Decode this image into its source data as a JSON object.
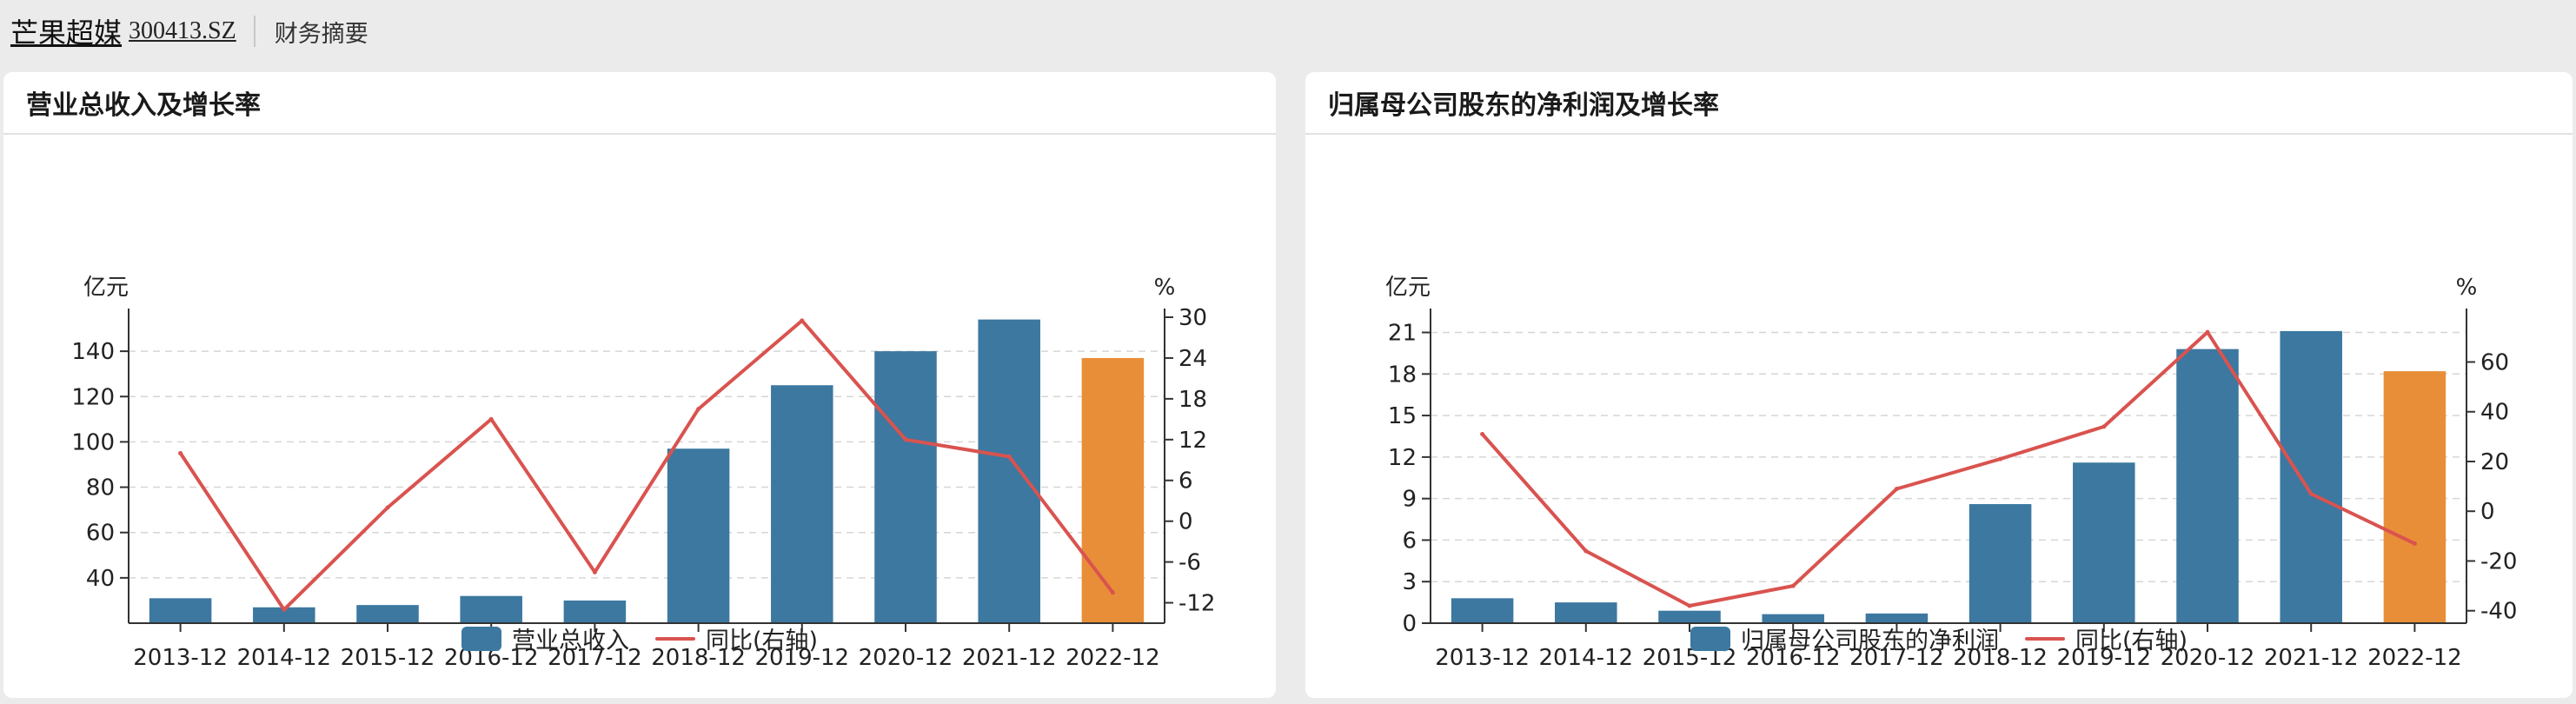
{
  "header": {
    "company": "芒果超媒",
    "code": "300413.SZ",
    "section": "财务摘要"
  },
  "colors": {
    "bar": "#3c78a0",
    "bar_highlight": "#e98e38",
    "line": "#d9534f",
    "grid": "#d6d6d6",
    "axis": "#333333"
  },
  "chart_data": [
    {
      "type": "bar",
      "title": "营业总收入及增长率",
      "ylabel": "亿元",
      "y2label": "%",
      "categories": [
        "2013-12",
        "2014-12",
        "2015-12",
        "2016-12",
        "2017-12",
        "2018-12",
        "2019-12",
        "2020-12",
        "2021-12",
        "2022-12"
      ],
      "ylim": [
        20,
        155
      ],
      "yticks": [
        40,
        60,
        80,
        100,
        120,
        140
      ],
      "y2lim": [
        -15,
        30
      ],
      "y2ticks": [
        -12,
        -6,
        0,
        6,
        12,
        18,
        24,
        30
      ],
      "highlight_index": 9,
      "grid": true,
      "legend_position": "bottom",
      "series": [
        {
          "name": "营业总收入",
          "kind": "bar",
          "axis": "left",
          "values": [
            31,
            27,
            28,
            32,
            30,
            97,
            125,
            140,
            154,
            137
          ]
        },
        {
          "name": "同比(右轴)",
          "kind": "line",
          "axis": "right",
          "values": [
            10,
            -13,
            2,
            15,
            -7.5,
            16.5,
            29.5,
            12,
            9.5,
            -10.5
          ]
        }
      ]
    },
    {
      "type": "bar",
      "title": "归属母公司股东的净利润及增长率",
      "ylabel": "亿元",
      "y2label": "%",
      "categories": [
        "2013-12",
        "2014-12",
        "2015-12",
        "2016-12",
        "2017-12",
        "2018-12",
        "2019-12",
        "2020-12",
        "2021-12",
        "2022-12"
      ],
      "ylim": [
        0,
        22.1
      ],
      "yticks": [
        0,
        3,
        6,
        9,
        12,
        15,
        18,
        21
      ],
      "y2lim": [
        -45,
        78
      ],
      "y2ticks": [
        -40,
        -20,
        0,
        20,
        40,
        60
      ],
      "highlight_index": 9,
      "grid": true,
      "legend_position": "bottom",
      "series": [
        {
          "name": "归属母公司股东的净利润",
          "kind": "bar",
          "axis": "left",
          "values": [
            1.8,
            1.5,
            0.9,
            0.65,
            0.7,
            8.6,
            11.6,
            19.8,
            21.1,
            18.2
          ]
        },
        {
          "name": "同比(右轴)",
          "kind": "line",
          "axis": "right",
          "values": [
            31,
            -16,
            -38,
            -30,
            9,
            21,
            34,
            72,
            7,
            -13
          ]
        }
      ]
    }
  ]
}
